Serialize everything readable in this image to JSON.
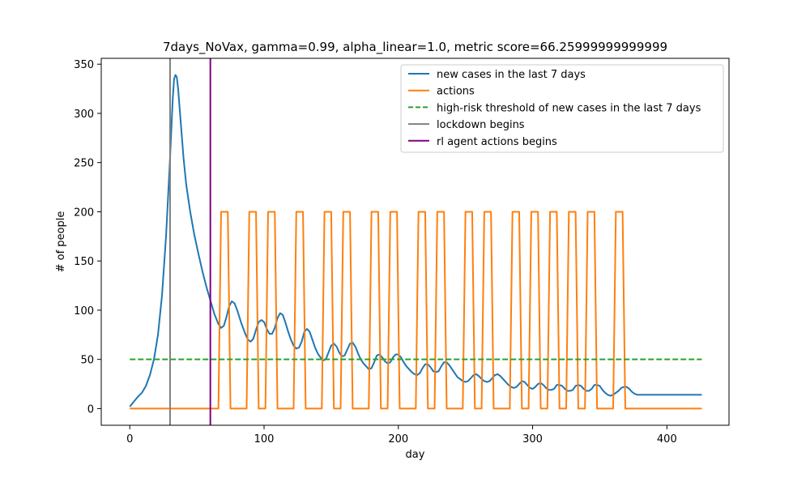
{
  "chart_data": {
    "type": "line",
    "title": "7days_NoVax, gamma=0.99, alpha_linear=1.0, metric score=66.25999999999999",
    "xlabel": "day",
    "ylabel": "# of people",
    "xlim": [
      -21.25,
      446.25
    ],
    "ylim": [
      -16.95,
      355.95
    ],
    "xticks": [
      0,
      100,
      200,
      300,
      400
    ],
    "yticks": [
      0,
      50,
      100,
      150,
      200,
      250,
      300,
      350
    ],
    "grid": false,
    "legend_position": "top-right",
    "colors": {
      "cases": "#1f77b4",
      "actions": "#ff7f0e",
      "threshold": "#2ca02c",
      "lockdown": "#808080",
      "rl": "#800080"
    },
    "series": [
      {
        "name": "new cases in the last 7 days",
        "kind": "line",
        "color": "#1f77b4",
        "points": [
          [
            0,
            2
          ],
          [
            3,
            7
          ],
          [
            6,
            12
          ],
          [
            9,
            16
          ],
          [
            12,
            23
          ],
          [
            15,
            34
          ],
          [
            18,
            50
          ],
          [
            21,
            75
          ],
          [
            24,
            115
          ],
          [
            27,
            175
          ],
          [
            30,
            255
          ],
          [
            32,
            315
          ],
          [
            33,
            335
          ],
          [
            34,
            339
          ],
          [
            35,
            337
          ],
          [
            36,
            325
          ],
          [
            38,
            290
          ],
          [
            40,
            255
          ],
          [
            42,
            228
          ],
          [
            45,
            200
          ],
          [
            48,
            177
          ],
          [
            51,
            158
          ],
          [
            54,
            140
          ],
          [
            57,
            124
          ],
          [
            60,
            110
          ],
          [
            63,
            96
          ],
          [
            66,
            86
          ],
          [
            68,
            82
          ],
          [
            70,
            84
          ],
          [
            72,
            93
          ],
          [
            74,
            104
          ],
          [
            76,
            109
          ],
          [
            78,
            107
          ],
          [
            80,
            100
          ],
          [
            83,
            87
          ],
          [
            86,
            76
          ],
          [
            88,
            70
          ],
          [
            90,
            68
          ],
          [
            92,
            71
          ],
          [
            94,
            80
          ],
          [
            96,
            88
          ],
          [
            98,
            90
          ],
          [
            100,
            88
          ],
          [
            102,
            81
          ],
          [
            104,
            76
          ],
          [
            106,
            76
          ],
          [
            108,
            82
          ],
          [
            110,
            92
          ],
          [
            112,
            97
          ],
          [
            114,
            95
          ],
          [
            116,
            87
          ],
          [
            118,
            78
          ],
          [
            120,
            70
          ],
          [
            122,
            64
          ],
          [
            124,
            61
          ],
          [
            126,
            62
          ],
          [
            128,
            68
          ],
          [
            130,
            78
          ],
          [
            132,
            81
          ],
          [
            134,
            78
          ],
          [
            136,
            70
          ],
          [
            138,
            62
          ],
          [
            140,
            56
          ],
          [
            142,
            52
          ],
          [
            144,
            49
          ],
          [
            146,
            50
          ],
          [
            148,
            57
          ],
          [
            150,
            64
          ],
          [
            152,
            66
          ],
          [
            154,
            63
          ],
          [
            156,
            57
          ],
          [
            158,
            53
          ],
          [
            160,
            54
          ],
          [
            162,
            60
          ],
          [
            164,
            66
          ],
          [
            166,
            67
          ],
          [
            168,
            63
          ],
          [
            170,
            56
          ],
          [
            172,
            50
          ],
          [
            174,
            46
          ],
          [
            176,
            43
          ],
          [
            178,
            40
          ],
          [
            180,
            41
          ],
          [
            182,
            47
          ],
          [
            184,
            54
          ],
          [
            186,
            55
          ],
          [
            188,
            52
          ],
          [
            190,
            48
          ],
          [
            192,
            46
          ],
          [
            194,
            47
          ],
          [
            196,
            52
          ],
          [
            198,
            55
          ],
          [
            200,
            55
          ],
          [
            202,
            52
          ],
          [
            204,
            47
          ],
          [
            206,
            43
          ],
          [
            208,
            40
          ],
          [
            210,
            37
          ],
          [
            212,
            35
          ],
          [
            214,
            34
          ],
          [
            216,
            36
          ],
          [
            218,
            41
          ],
          [
            220,
            45
          ],
          [
            222,
            45
          ],
          [
            224,
            42
          ],
          [
            226,
            38
          ],
          [
            228,
            37
          ],
          [
            230,
            38
          ],
          [
            232,
            43
          ],
          [
            234,
            47
          ],
          [
            236,
            47
          ],
          [
            238,
            44
          ],
          [
            240,
            40
          ],
          [
            242,
            36
          ],
          [
            244,
            32
          ],
          [
            246,
            30
          ],
          [
            248,
            28
          ],
          [
            250,
            27
          ],
          [
            252,
            28
          ],
          [
            254,
            31
          ],
          [
            256,
            34
          ],
          [
            258,
            35
          ],
          [
            260,
            33
          ],
          [
            262,
            30
          ],
          [
            264,
            28
          ],
          [
            266,
            27
          ],
          [
            268,
            28
          ],
          [
            270,
            31
          ],
          [
            272,
            34
          ],
          [
            274,
            35
          ],
          [
            276,
            33
          ],
          [
            278,
            30
          ],
          [
            280,
            27
          ],
          [
            282,
            24
          ],
          [
            284,
            22
          ],
          [
            286,
            21
          ],
          [
            288,
            22
          ],
          [
            290,
            25
          ],
          [
            292,
            28
          ],
          [
            294,
            27
          ],
          [
            296,
            24
          ],
          [
            298,
            21
          ],
          [
            300,
            20
          ],
          [
            302,
            22
          ],
          [
            304,
            25
          ],
          [
            306,
            26
          ],
          [
            308,
            24
          ],
          [
            310,
            21
          ],
          [
            312,
            19
          ],
          [
            314,
            19
          ],
          [
            316,
            20
          ],
          [
            318,
            24
          ],
          [
            320,
            24
          ],
          [
            322,
            23
          ],
          [
            324,
            20
          ],
          [
            326,
            18
          ],
          [
            328,
            18
          ],
          [
            330,
            19
          ],
          [
            332,
            23
          ],
          [
            334,
            24
          ],
          [
            336,
            23
          ],
          [
            338,
            20
          ],
          [
            340,
            18
          ],
          [
            342,
            18
          ],
          [
            344,
            20
          ],
          [
            346,
            24
          ],
          [
            348,
            24
          ],
          [
            350,
            23
          ],
          [
            352,
            19
          ],
          [
            354,
            16
          ],
          [
            356,
            14
          ],
          [
            358,
            13
          ],
          [
            360,
            14
          ],
          [
            362,
            16
          ],
          [
            364,
            18
          ],
          [
            366,
            21
          ],
          [
            368,
            22
          ],
          [
            370,
            22
          ],
          [
            372,
            20
          ],
          [
            374,
            17
          ],
          [
            376,
            15
          ],
          [
            378,
            14
          ],
          [
            385,
            14
          ],
          [
            400,
            14
          ],
          [
            426,
            14
          ]
        ]
      },
      {
        "name": "actions",
        "kind": "line",
        "color": "#ff7f0e",
        "points": [
          [
            0,
            0
          ],
          [
            66,
            0
          ],
          [
            68,
            200
          ],
          [
            73,
            200
          ],
          [
            75,
            0
          ],
          [
            87,
            0
          ],
          [
            89,
            200
          ],
          [
            94,
            200
          ],
          [
            96,
            0
          ],
          [
            101,
            0
          ],
          [
            103,
            200
          ],
          [
            108,
            200
          ],
          [
            110,
            0
          ],
          [
            122,
            0
          ],
          [
            124,
            200
          ],
          [
            129,
            200
          ],
          [
            131,
            0
          ],
          [
            143,
            0
          ],
          [
            145,
            200
          ],
          [
            150,
            200
          ],
          [
            152,
            0
          ],
          [
            157,
            0
          ],
          [
            159,
            200
          ],
          [
            164,
            200
          ],
          [
            166,
            0
          ],
          [
            178,
            0
          ],
          [
            180,
            200
          ],
          [
            185,
            200
          ],
          [
            187,
            0
          ],
          [
            192,
            0
          ],
          [
            194,
            200
          ],
          [
            199,
            200
          ],
          [
            201,
            0
          ],
          [
            213,
            0
          ],
          [
            215,
            200
          ],
          [
            220,
            200
          ],
          [
            222,
            0
          ],
          [
            227,
            0
          ],
          [
            229,
            200
          ],
          [
            234,
            200
          ],
          [
            236,
            0
          ],
          [
            248,
            0
          ],
          [
            250,
            200
          ],
          [
            255,
            200
          ],
          [
            257,
            0
          ],
          [
            262,
            0
          ],
          [
            264,
            200
          ],
          [
            269,
            200
          ],
          [
            271,
            0
          ],
          [
            283,
            0
          ],
          [
            285,
            200
          ],
          [
            290,
            200
          ],
          [
            292,
            0
          ],
          [
            297,
            0
          ],
          [
            299,
            200
          ],
          [
            304,
            200
          ],
          [
            306,
            0
          ],
          [
            311,
            0
          ],
          [
            313,
            200
          ],
          [
            318,
            200
          ],
          [
            320,
            0
          ],
          [
            325,
            0
          ],
          [
            327,
            200
          ],
          [
            332,
            200
          ],
          [
            334,
            0
          ],
          [
            339,
            0
          ],
          [
            341,
            200
          ],
          [
            346,
            200
          ],
          [
            348,
            0
          ],
          [
            360,
            0
          ],
          [
            362,
            200
          ],
          [
            367,
            200
          ],
          [
            369,
            0
          ],
          [
            426,
            0
          ]
        ]
      },
      {
        "name": "high-risk threshold of new cases in the last 7 days",
        "kind": "dashed",
        "color": "#2ca02c",
        "points": [
          [
            0,
            50
          ],
          [
            426,
            50
          ]
        ]
      },
      {
        "name": "lockdown begins",
        "kind": "vline",
        "color": "#808080",
        "x": 30
      },
      {
        "name": "rl agent actions begins",
        "kind": "vline",
        "color": "#800080",
        "x": 60
      }
    ]
  }
}
